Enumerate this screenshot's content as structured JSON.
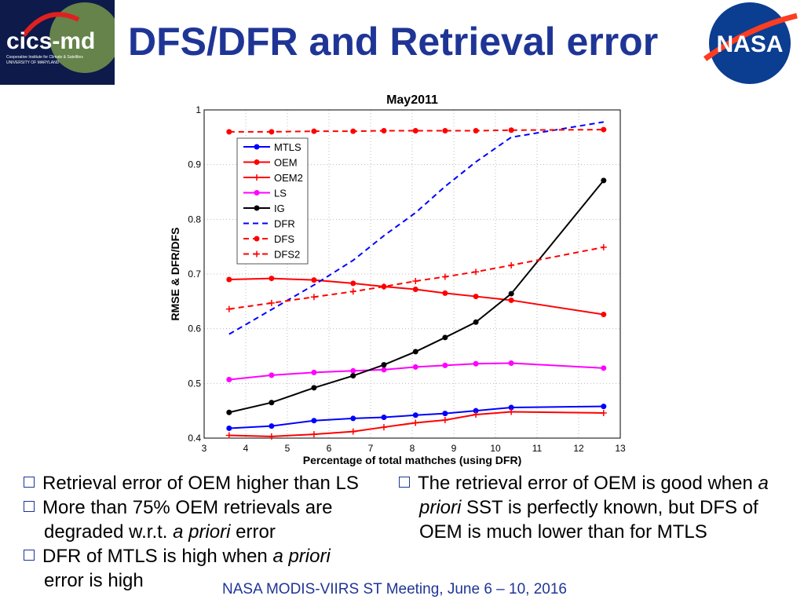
{
  "slide": {
    "title": "DFS/DFR and Retrieval error",
    "footer": "NASA MODIS-VIIRS ST Meeting, June 6 – 10, 2016",
    "logo": {
      "name": "cics-md",
      "subtitle1": "Cooperative Institute for Climate & Satellites",
      "subtitle2": "UNIVERSITY OF MARYLAND"
    },
    "nasa_logo": "NASA",
    "bullets_left": [
      {
        "text": "Retrieval error of OEM higher than LS"
      },
      {
        "text": "More than 75% OEM retrievals are",
        "line2a": "degraded w.r.t. ",
        "line2i": "a priori",
        "line2b": " error"
      },
      {
        "text": "DFR of MTLS is high when ",
        "italic": "a priori",
        "line2": "error is high"
      }
    ],
    "bullets_right": {
      "t1": "The retrieval error of OEM is good when ",
      "i1": "a",
      "i2": "priori",
      "t2": " SST is perfectly known, but DFS of",
      "t3": "OEM is much lower than for MTLS"
    }
  },
  "colors": {
    "title": "#1f3596",
    "blue": "#0000ff",
    "red": "#ff0000",
    "magenta": "#ff00ff",
    "black": "#000000"
  },
  "chart_data": {
    "type": "line",
    "title": "May2011",
    "xlabel": "Percentage of total mathches (using DFR)",
    "ylabel": "RMSE & DFR/DFS",
    "xlim": [
      3,
      13
    ],
    "ylim": [
      0.4,
      1
    ],
    "xticks": [
      3,
      4,
      5,
      6,
      7,
      8,
      9,
      10,
      11,
      12,
      13
    ],
    "yticks": [
      0.4,
      0.5,
      0.6,
      0.7,
      0.8,
      0.9,
      1
    ],
    "yticklabels": [
      "0.4",
      "0.5",
      "0.6",
      "0.7",
      "0.8",
      "0.9",
      "1"
    ],
    "grid": true,
    "legend": "top-left",
    "x": [
      3.6,
      4.62,
      5.64,
      6.58,
      7.32,
      8.08,
      8.79,
      9.53,
      10.38,
      12.6
    ],
    "series": [
      {
        "name": "MTLS",
        "color": "#0000ff",
        "dash": false,
        "marker": "dot",
        "values": [
          0.418,
          0.422,
          0.432,
          0.436,
          0.438,
          0.442,
          0.445,
          0.45,
          0.456,
          0.458
        ]
      },
      {
        "name": "OEM",
        "color": "#ff0000",
        "dash": false,
        "marker": "dot",
        "values": [
          0.69,
          0.692,
          0.689,
          0.683,
          0.677,
          0.672,
          0.665,
          0.659,
          0.652,
          0.626
        ]
      },
      {
        "name": "OEM2",
        "color": "#ff0000",
        "dash": false,
        "marker": "plus",
        "values": [
          0.405,
          0.403,
          0.407,
          0.412,
          0.42,
          0.428,
          0.433,
          0.443,
          0.448,
          0.446
        ]
      },
      {
        "name": "LS",
        "color": "#ff00ff",
        "dash": false,
        "marker": "dot",
        "values": [
          0.507,
          0.515,
          0.52,
          0.523,
          0.525,
          0.53,
          0.533,
          0.536,
          0.537,
          0.528
        ]
      },
      {
        "name": "IG",
        "color": "#000000",
        "dash": false,
        "marker": "dot",
        "values": [
          0.447,
          0.465,
          0.492,
          0.514,
          0.534,
          0.558,
          0.584,
          0.612,
          0.664,
          0.871
        ]
      },
      {
        "name": "DFR",
        "color": "#0000ff",
        "dash": true,
        "marker": "none",
        "values": [
          0.59,
          0.635,
          0.68,
          0.725,
          0.77,
          0.812,
          0.86,
          0.905,
          0.95,
          0.978
        ]
      },
      {
        "name": "DFS",
        "color": "#ff0000",
        "dash": true,
        "marker": "dot",
        "values": [
          0.96,
          0.96,
          0.961,
          0.961,
          0.962,
          0.962,
          0.962,
          0.962,
          0.963,
          0.964
        ]
      },
      {
        "name": "DFS2",
        "color": "#ff0000",
        "dash": true,
        "marker": "plus",
        "values": [
          0.636,
          0.647,
          0.658,
          0.668,
          0.677,
          0.687,
          0.695,
          0.704,
          0.716,
          0.749
        ]
      }
    ]
  }
}
